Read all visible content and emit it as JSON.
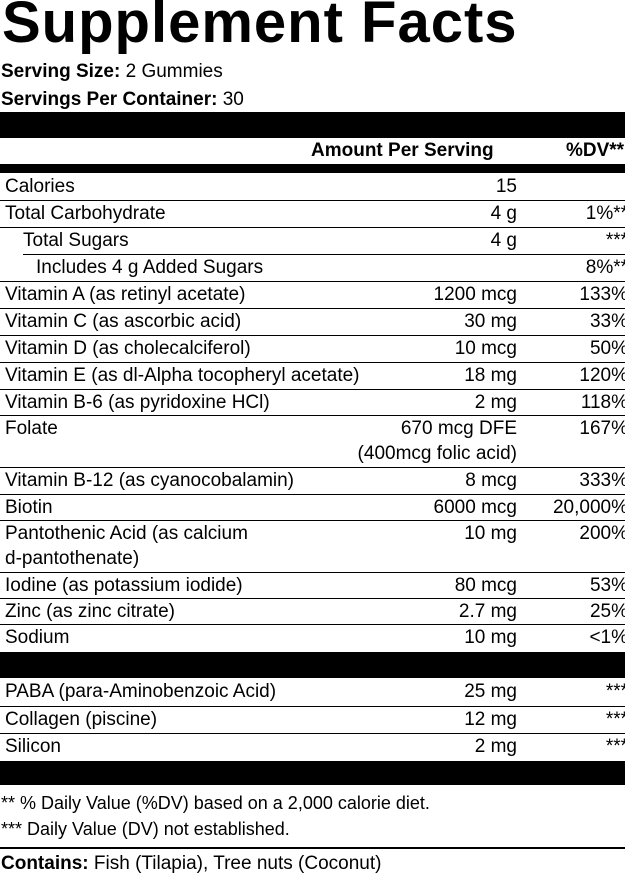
{
  "title": "Supplement Facts",
  "serving_size_label": "Serving Size:",
  "serving_size_value": "2 Gummies",
  "servings_per_container_label": "Servings Per Container:",
  "servings_per_container_value": "30",
  "header": {
    "amount": "Amount Per Serving",
    "dv": "%DV**"
  },
  "nutrients": [
    {
      "name": "Calories",
      "amount": "15",
      "dv": ""
    },
    {
      "name": "Total Carbohydrate",
      "amount": "4 g",
      "dv": "1%**"
    },
    {
      "name": "Total Sugars",
      "amount": "4 g",
      "dv": "***"
    },
    {
      "name": "Includes 4 g Added Sugars",
      "amount": "",
      "dv": "8%**"
    },
    {
      "name": "Vitamin A (as retinyl acetate)",
      "amount": "1200 mcg",
      "dv": "133%"
    },
    {
      "name": "Vitamin C (as ascorbic acid)",
      "amount": "30 mg",
      "dv": "33%"
    },
    {
      "name": "Vitamin D (as cholecalciferol)",
      "amount": "10 mcg",
      "dv": "50%"
    },
    {
      "name": "Vitamin E (as dl-Alpha tocopheryl acetate)",
      "amount": "18 mg",
      "dv": "120%"
    },
    {
      "name": "Vitamin B-6 (as pyridoxine HCl)",
      "amount": "2 mg",
      "dv": "118%"
    },
    {
      "name": "Folate",
      "amount": "670 mcg DFE",
      "amount2": "(400mcg folic acid)",
      "dv": "167%"
    },
    {
      "name": "Vitamin B-12 (as cyanocobalamin)",
      "amount": "8 mcg",
      "dv": "333%"
    },
    {
      "name": "Biotin",
      "amount": "6000 mcg",
      "dv": "20,000%"
    },
    {
      "name": "Pantothenic Acid (as calcium",
      "name2": "d-pantothenate)",
      "amount": "10 mg",
      "dv": "200%"
    },
    {
      "name": "Iodine (as potassium iodide)",
      "amount": "80 mcg",
      "dv": "53%"
    },
    {
      "name": "Zinc (as zinc citrate)",
      "amount": "2.7 mg",
      "dv": "25%"
    },
    {
      "name": "Sodium",
      "amount": "10 mg",
      "dv": "<1%"
    }
  ],
  "other_ingredients": [
    {
      "name": "PABA (para-Aminobenzoic Acid)",
      "amount": "25 mg",
      "dv": "***"
    },
    {
      "name": "Collagen (piscine)",
      "amount": "12 mg",
      "dv": "***"
    },
    {
      "name": "Silicon",
      "amount": "2 mg",
      "dv": "***"
    }
  ],
  "footnotes": [
    "** % Daily Value (%DV) based on a 2,000 calorie diet.",
    "*** Daily Value (DV) not established."
  ],
  "contains_label": "Contains:",
  "contains_value": "Fish (Tilapia), Tree nuts (Coconut)"
}
